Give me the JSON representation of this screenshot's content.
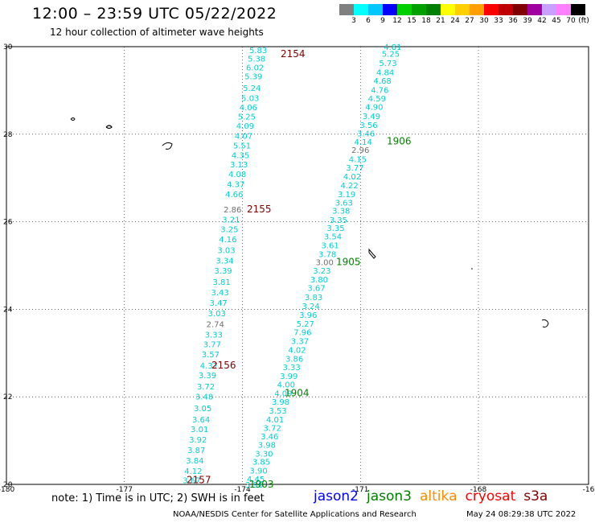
{
  "header": {
    "title": "12:00 – 23:59 UTC 05/22/2022",
    "subtitle": "12 hour collection of altimeter wave heights"
  },
  "colorbar": {
    "colors": [
      "#808080",
      "#00ffff",
      "#00c8ff",
      "#0000ff",
      "#00d000",
      "#00a000",
      "#008000",
      "#ffff00",
      "#ffd000",
      "#ffa000",
      "#ff0000",
      "#c00000",
      "#800000",
      "#a000a0",
      "#c8a0ff",
      "#ff80ff",
      "#000000"
    ],
    "ticks": [
      "3",
      "6",
      "9",
      "12",
      "15",
      "18",
      "21",
      "24",
      "27",
      "30",
      "33",
      "36",
      "39",
      "42",
      "45",
      "70"
    ],
    "unit": "(ft)"
  },
  "map": {
    "lon_labels": [
      "-180",
      "-177",
      "-174",
      "-171",
      "-168",
      "-16"
    ],
    "lat_labels": [
      "30",
      "28",
      "26",
      "24",
      "22",
      "20"
    ],
    "tracks": [
      {
        "pass": "2154",
        "pass_lat": 29.83,
        "points": [
          {
            "lat": 29.93,
            "lon": -173.6,
            "v": "5.83",
            "c": "#00d0d0"
          },
          {
            "lat": 29.73,
            "lon": -173.64,
            "v": "5.38",
            "c": "#00d0d0"
          },
          {
            "lat": 29.53,
            "lon": -173.68,
            "v": "6.02",
            "c": "#00d0d0"
          },
          {
            "lat": 29.33,
            "lon": -173.72,
            "v": "5.39",
            "c": "#00d0d0"
          },
          {
            "lat": 29.06,
            "lon": -173.76,
            "v": "5.24",
            "c": "#00d0d0"
          },
          {
            "lat": 28.83,
            "lon": -173.8,
            "v": "5.03",
            "c": "#00d0d0"
          },
          {
            "lat": 28.62,
            "lon": -173.85,
            "v": "4.06",
            "c": "#00d0d0"
          },
          {
            "lat": 28.41,
            "lon": -173.89,
            "v": "5.25",
            "c": "#00d0d0"
          },
          {
            "lat": 28.2,
            "lon": -173.93,
            "v": "4.09",
            "c": "#00d0d0"
          },
          {
            "lat": 27.97,
            "lon": -173.97,
            "v": "4.07",
            "c": "#00d0d0"
          },
          {
            "lat": 27.75,
            "lon": -174.01,
            "v": "5.51",
            "c": "#00d0d0"
          },
          {
            "lat": 27.53,
            "lon": -174.05,
            "v": "4.35",
            "c": "#00d0d0"
          },
          {
            "lat": 27.32,
            "lon": -174.09,
            "v": "3.13",
            "c": "#00d0d0"
          },
          {
            "lat": 27.1,
            "lon": -174.13,
            "v": "4.08",
            "c": "#00d0d0"
          },
          {
            "lat": 26.87,
            "lon": -174.17,
            "v": "4.37",
            "c": "#00d0d0"
          },
          {
            "lat": 26.64,
            "lon": -174.21,
            "v": "4.66",
            "c": "#00d0d0"
          }
        ]
      },
      {
        "pass": "2155",
        "pass_lat": 26.29,
        "points": [
          {
            "lat": 26.29,
            "lon": -174.25,
            "v": "2.86",
            "c": "#707070"
          },
          {
            "lat": 26.06,
            "lon": -174.29,
            "v": "3.21",
            "c": "#00d0d0"
          },
          {
            "lat": 25.84,
            "lon": -174.33,
            "v": "3.25",
            "c": "#00d0d0"
          },
          {
            "lat": 25.61,
            "lon": -174.37,
            "v": "4.16",
            "c": "#00d0d0"
          },
          {
            "lat": 25.36,
            "lon": -174.41,
            "v": "3.03",
            "c": "#00d0d0"
          },
          {
            "lat": 25.12,
            "lon": -174.45,
            "v": "3.34",
            "c": "#00d0d0"
          },
          {
            "lat": 24.89,
            "lon": -174.49,
            "v": "3.39",
            "c": "#00d0d0"
          },
          {
            "lat": 24.63,
            "lon": -174.53,
            "v": "3.81",
            "c": "#00d0d0"
          },
          {
            "lat": 24.39,
            "lon": -174.57,
            "v": "3.43",
            "c": "#00d0d0"
          },
          {
            "lat": 24.15,
            "lon": -174.61,
            "v": "3.47",
            "c": "#00d0d0"
          },
          {
            "lat": 23.92,
            "lon": -174.65,
            "v": "3.03",
            "c": "#00d0d0"
          },
          {
            "lat": 23.67,
            "lon": -174.69,
            "v": "2.74",
            "c": "#707070"
          },
          {
            "lat": 23.43,
            "lon": -174.73,
            "v": "3.33",
            "c": "#00d0d0"
          },
          {
            "lat": 23.21,
            "lon": -174.77,
            "v": "3.77",
            "c": "#00d0d0"
          },
          {
            "lat": 22.98,
            "lon": -174.81,
            "v": "3.57",
            "c": "#00d0d0"
          },
          {
            "lat": 22.72,
            "lon": -174.85,
            "v": "4.37",
            "c": "#00d0d0"
          }
        ]
      },
      {
        "pass": "2156",
        "pass_lat": 22.72,
        "points": [
          {
            "lat": 22.5,
            "lon": -174.89,
            "v": "3.39",
            "c": "#00d0d0"
          },
          {
            "lat": 22.24,
            "lon": -174.93,
            "v": "3.72",
            "c": "#00d0d0"
          },
          {
            "lat": 22.01,
            "lon": -174.97,
            "v": "3.48",
            "c": "#00d0d0"
          },
          {
            "lat": 21.75,
            "lon": -175.01,
            "v": "3.05",
            "c": "#00d0d0"
          },
          {
            "lat": 21.49,
            "lon": -175.05,
            "v": "3.64",
            "c": "#00d0d0"
          },
          {
            "lat": 21.27,
            "lon": -175.09,
            "v": "3.01",
            "c": "#00d0d0"
          },
          {
            "lat": 21.03,
            "lon": -175.13,
            "v": "3.92",
            "c": "#00d0d0"
          },
          {
            "lat": 20.79,
            "lon": -175.17,
            "v": "3.87",
            "c": "#00d0d0"
          },
          {
            "lat": 20.55,
            "lon": -175.21,
            "v": "3.84",
            "c": "#00d0d0"
          },
          {
            "lat": 20.31,
            "lon": -175.25,
            "v": "4.12",
            "c": "#00d0d0"
          },
          {
            "lat": 20.1,
            "lon": -175.29,
            "v": "3.67",
            "c": "#00d0d0"
          }
        ]
      },
      {
        "pass": "2157",
        "pass_lat": 20.1,
        "points": []
      },
      {
        "pass": "1906",
        "pass_lat": 27.84,
        "points": [
          {
            "lat": 30.0,
            "lon": -170.18,
            "v": "4.81",
            "c": "#00d0d0"
          },
          {
            "lat": 29.84,
            "lon": -170.23,
            "v": "5.25",
            "c": "#00d0d0"
          },
          {
            "lat": 29.63,
            "lon": -170.3,
            "v": "5.73",
            "c": "#00d0d0"
          },
          {
            "lat": 29.42,
            "lon": -170.37,
            "v": "4.84",
            "c": "#00d0d0"
          },
          {
            "lat": 29.23,
            "lon": -170.44,
            "v": "4.68",
            "c": "#00d0d0"
          },
          {
            "lat": 29.02,
            "lon": -170.51,
            "v": "4.76",
            "c": "#00d0d0"
          },
          {
            "lat": 28.82,
            "lon": -170.58,
            "v": "4.59",
            "c": "#00d0d0"
          },
          {
            "lat": 28.63,
            "lon": -170.65,
            "v": "4.90",
            "c": "#00d0d0"
          },
          {
            "lat": 28.42,
            "lon": -170.72,
            "v": "3.49",
            "c": "#00d0d0"
          },
          {
            "lat": 28.22,
            "lon": -170.79,
            "v": "3.56",
            "c": "#00d0d0"
          },
          {
            "lat": 28.02,
            "lon": -170.86,
            "v": "3.46",
            "c": "#00d0d0"
          },
          {
            "lat": 27.83,
            "lon": -170.93,
            "v": "4.14",
            "c": "#00d0d0"
          },
          {
            "lat": 27.65,
            "lon": -171.0,
            "v": "2.96",
            "c": "#707070"
          },
          {
            "lat": 27.44,
            "lon": -171.07,
            "v": "4.15",
            "c": "#00d0d0"
          },
          {
            "lat": 27.24,
            "lon": -171.14,
            "v": "3.77",
            "c": "#00d0d0"
          },
          {
            "lat": 27.04,
            "lon": -171.21,
            "v": "4.02",
            "c": "#00d0d0"
          },
          {
            "lat": 26.84,
            "lon": -171.28,
            "v": "4.22",
            "c": "#00d0d0"
          },
          {
            "lat": 26.64,
            "lon": -171.35,
            "v": "3.19",
            "c": "#00d0d0"
          },
          {
            "lat": 26.44,
            "lon": -171.42,
            "v": "3.63",
            "c": "#00d0d0"
          },
          {
            "lat": 26.26,
            "lon": -171.49,
            "v": "3.38",
            "c": "#00d0d0"
          },
          {
            "lat": 26.05,
            "lon": -171.56,
            "v": "3.35",
            "c": "#00d0d0"
          },
          {
            "lat": 25.86,
            "lon": -171.63,
            "v": "3.35",
            "c": "#00d0d0"
          },
          {
            "lat": 25.67,
            "lon": -171.7,
            "v": "3.54",
            "c": "#00d0d0"
          },
          {
            "lat": 25.47,
            "lon": -171.77,
            "v": "3.61",
            "c": "#00d0d0"
          },
          {
            "lat": 25.27,
            "lon": -171.84,
            "v": "3.78",
            "c": "#00d0d0"
          }
        ]
      },
      {
        "pass": "1905",
        "pass_lat": 25.08,
        "points": [
          {
            "lat": 25.08,
            "lon": -171.91,
            "v": "3.00",
            "c": "#707070"
          },
          {
            "lat": 24.89,
            "lon": -171.98,
            "v": "3.23",
            "c": "#00d0d0"
          },
          {
            "lat": 24.69,
            "lon": -172.05,
            "v": "3.80",
            "c": "#00d0d0"
          },
          {
            "lat": 24.49,
            "lon": -172.12,
            "v": "3.67",
            "c": "#00d0d0"
          },
          {
            "lat": 24.28,
            "lon": -172.19,
            "v": "3.83",
            "c": "#00d0d0"
          },
          {
            "lat": 24.08,
            "lon": -172.26,
            "v": "3.24",
            "c": "#00d0d0"
          },
          {
            "lat": 23.88,
            "lon": -172.33,
            "v": "3.96",
            "c": "#00d0d0"
          },
          {
            "lat": 23.68,
            "lon": -172.4,
            "v": "5.27",
            "c": "#00d0d0"
          },
          {
            "lat": 23.48,
            "lon": -172.47,
            "v": "7.96",
            "c": "#00d0d0"
          },
          {
            "lat": 23.28,
            "lon": -172.54,
            "v": "3.37",
            "c": "#00d0d0"
          },
          {
            "lat": 23.08,
            "lon": -172.61,
            "v": "4.02",
            "c": "#00d0d0"
          },
          {
            "lat": 22.88,
            "lon": -172.68,
            "v": "3.86",
            "c": "#00d0d0"
          },
          {
            "lat": 22.68,
            "lon": -172.75,
            "v": "3.33",
            "c": "#00d0d0"
          },
          {
            "lat": 22.48,
            "lon": -172.82,
            "v": "3.99",
            "c": "#00d0d0"
          },
          {
            "lat": 22.29,
            "lon": -172.89,
            "v": "4.00",
            "c": "#00d0d0"
          },
          {
            "lat": 22.09,
            "lon": -172.96,
            "v": "4.09",
            "c": "#00d0d0"
          }
        ]
      },
      {
        "pass": "1904",
        "pass_lat": 22.09,
        "points": [
          {
            "lat": 21.89,
            "lon": -173.03,
            "v": "3.98",
            "c": "#00d0d0"
          },
          {
            "lat": 21.69,
            "lon": -173.1,
            "v": "3.53",
            "c": "#00d0d0"
          },
          {
            "lat": 21.49,
            "lon": -173.17,
            "v": "4.01",
            "c": "#00d0d0"
          },
          {
            "lat": 21.3,
            "lon": -173.24,
            "v": "3.72",
            "c": "#00d0d0"
          },
          {
            "lat": 21.1,
            "lon": -173.31,
            "v": "3.46",
            "c": "#00d0d0"
          },
          {
            "lat": 20.91,
            "lon": -173.38,
            "v": "3.98",
            "c": "#00d0d0"
          },
          {
            "lat": 20.71,
            "lon": -173.45,
            "v": "3.30",
            "c": "#00d0d0"
          },
          {
            "lat": 20.52,
            "lon": -173.52,
            "v": "3.85",
            "c": "#00d0d0"
          },
          {
            "lat": 20.32,
            "lon": -173.59,
            "v": "3.90",
            "c": "#00d0d0"
          },
          {
            "lat": 20.13,
            "lon": -173.66,
            "v": "4.45",
            "c": "#00d0d0"
          },
          {
            "lat": 20.0,
            "lon": -173.7,
            "v": "3.98",
            "c": "#00d0d0"
          }
        ]
      },
      {
        "pass": "1903",
        "pass_lat": 20.0,
        "points": []
      }
    ]
  },
  "pass_colors": {
    "2154": "#800000",
    "2155": "#800000",
    "2156": "#800000",
    "2157": "#800000",
    "1906": "#008000",
    "1905": "#008000",
    "1904": "#008000",
    "1903": "#008000"
  },
  "footer": {
    "note": "note: 1) Time is in UTC; 2) SWH is in feet",
    "satellites": [
      {
        "name": "jason2",
        "color": "#0000ff"
      },
      {
        "name": "jason3",
        "color": "#008000"
      },
      {
        "name": "altika",
        "color": "#ff8c00"
      },
      {
        "name": "cryosat",
        "color": "#ff0000"
      },
      {
        "name": "s3a",
        "color": "#800000"
      }
    ],
    "credit": "NOAA/NESDIS Center for Satellite Applications and Research",
    "timestamp": "May 24 08:29:38 UTC 2022"
  }
}
